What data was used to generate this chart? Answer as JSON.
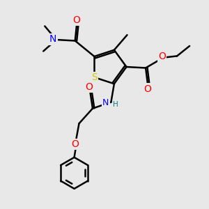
{
  "bg_color": "#e8e8e8",
  "line_color": "#000000",
  "bond_width": 1.8,
  "atom_colors": {
    "S": "#cccc00",
    "O": "#ff0000",
    "N": "#0000ff",
    "H": "#008080",
    "C": "#000000"
  },
  "font_size": 9.0,
  "figsize": [
    3.0,
    3.0
  ],
  "dpi": 100,
  "xlim": [
    0,
    10
  ],
  "ylim": [
    0,
    10
  ]
}
